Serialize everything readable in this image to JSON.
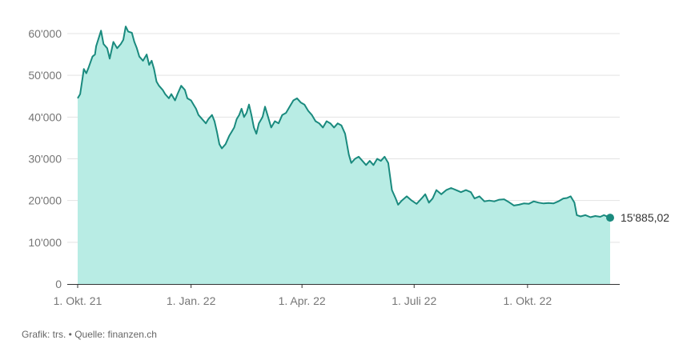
{
  "chart_data": {
    "type": "area",
    "title": "",
    "xlabel": "",
    "ylabel": "",
    "ylim": [
      0,
      60000
    ],
    "y_ticks": [
      0,
      10000,
      20000,
      30000,
      40000,
      50000,
      60000
    ],
    "y_tick_labels": [
      "0",
      "10'000",
      "20'000",
      "30'000",
      "40'000",
      "50'000",
      "60'000"
    ],
    "x_range": [
      "2021-10-01",
      "2022-12-07"
    ],
    "x_ticks": [
      "2021-10-01",
      "2022-01-01",
      "2022-04-01",
      "2022-07-01",
      "2022-10-01"
    ],
    "x_tick_labels": [
      "1. Okt. 21",
      "1. Jan. 22",
      "1. Apr. 22",
      "1. Juli 22",
      "1. Okt. 22"
    ],
    "grid": true,
    "colors": {
      "line": "#1a8a7e",
      "fill": "#b8ece4",
      "grid": "#e3e3e3",
      "axis": "#333333"
    },
    "last_value_label": "15'885,02",
    "series": [
      {
        "name": "",
        "points": [
          [
            "2021-10-01",
            44500
          ],
          [
            "2021-10-03",
            45500
          ],
          [
            "2021-10-05",
            49500
          ],
          [
            "2021-10-06",
            51500
          ],
          [
            "2021-10-08",
            50500
          ],
          [
            "2021-10-10",
            52000
          ],
          [
            "2021-10-13",
            54500
          ],
          [
            "2021-10-15",
            55000
          ],
          [
            "2021-10-16",
            57000
          ],
          [
            "2021-10-20",
            60700
          ],
          [
            "2021-10-22",
            57500
          ],
          [
            "2021-10-25",
            56500
          ],
          [
            "2021-10-27",
            54000
          ],
          [
            "2021-10-30",
            58000
          ],
          [
            "2021-11-02",
            56500
          ],
          [
            "2021-11-05",
            57500
          ],
          [
            "2021-11-07",
            58500
          ],
          [
            "2021-11-09",
            61700
          ],
          [
            "2021-11-11",
            60500
          ],
          [
            "2021-11-14",
            60200
          ],
          [
            "2021-11-16",
            58000
          ],
          [
            "2021-11-18",
            56500
          ],
          [
            "2021-11-20",
            54500
          ],
          [
            "2021-11-23",
            53500
          ],
          [
            "2021-11-26",
            55000
          ],
          [
            "2021-11-28",
            52500
          ],
          [
            "2021-11-30",
            53500
          ],
          [
            "2021-12-02",
            51500
          ],
          [
            "2021-12-04",
            48500
          ],
          [
            "2021-12-06",
            47500
          ],
          [
            "2021-12-09",
            46500
          ],
          [
            "2021-12-11",
            45500
          ],
          [
            "2021-12-14",
            44500
          ],
          [
            "2021-12-16",
            45500
          ],
          [
            "2021-12-19",
            44000
          ],
          [
            "2021-12-21",
            45500
          ],
          [
            "2021-12-24",
            47500
          ],
          [
            "2021-12-27",
            46500
          ],
          [
            "2021-12-29",
            44500
          ],
          [
            "2022-01-01",
            44000
          ],
          [
            "2022-01-03",
            43000
          ],
          [
            "2022-01-05",
            42000
          ],
          [
            "2022-01-07",
            40500
          ],
          [
            "2022-01-10",
            39500
          ],
          [
            "2022-01-13",
            38500
          ],
          [
            "2022-01-15",
            39500
          ],
          [
            "2022-01-18",
            40500
          ],
          [
            "2022-01-20",
            39000
          ],
          [
            "2022-01-22",
            36500
          ],
          [
            "2022-01-24",
            33500
          ],
          [
            "2022-01-26",
            32500
          ],
          [
            "2022-01-29",
            33500
          ],
          [
            "2022-02-01",
            35500
          ],
          [
            "2022-02-03",
            36500
          ],
          [
            "2022-02-05",
            37500
          ],
          [
            "2022-02-07",
            39500
          ],
          [
            "2022-02-09",
            40500
          ],
          [
            "2022-02-11",
            42000
          ],
          [
            "2022-02-13",
            40000
          ],
          [
            "2022-02-15",
            41000
          ],
          [
            "2022-02-17",
            43000
          ],
          [
            "2022-02-19",
            40500
          ],
          [
            "2022-02-21",
            37500
          ],
          [
            "2022-02-23",
            36000
          ],
          [
            "2022-02-25",
            38500
          ],
          [
            "2022-02-28",
            40000
          ],
          [
            "2022-03-02",
            42500
          ],
          [
            "2022-03-04",
            40500
          ],
          [
            "2022-03-07",
            37500
          ],
          [
            "2022-03-10",
            39000
          ],
          [
            "2022-03-13",
            38500
          ],
          [
            "2022-03-16",
            40500
          ],
          [
            "2022-03-19",
            41000
          ],
          [
            "2022-03-22",
            42500
          ],
          [
            "2022-03-25",
            44000
          ],
          [
            "2022-03-28",
            44500
          ],
          [
            "2022-03-31",
            43500
          ],
          [
            "2022-04-03",
            43000
          ],
          [
            "2022-04-06",
            41500
          ],
          [
            "2022-04-09",
            40500
          ],
          [
            "2022-04-12",
            39000
          ],
          [
            "2022-04-15",
            38500
          ],
          [
            "2022-04-18",
            37500
          ],
          [
            "2022-04-21",
            39000
          ],
          [
            "2022-04-24",
            38500
          ],
          [
            "2022-04-27",
            37500
          ],
          [
            "2022-04-30",
            38500
          ],
          [
            "2022-05-03",
            38000
          ],
          [
            "2022-05-06",
            36000
          ],
          [
            "2022-05-09",
            31000
          ],
          [
            "2022-05-11",
            29000
          ],
          [
            "2022-05-14",
            30000
          ],
          [
            "2022-05-17",
            30500
          ],
          [
            "2022-05-20",
            29500
          ],
          [
            "2022-05-23",
            28500
          ],
          [
            "2022-05-26",
            29500
          ],
          [
            "2022-05-29",
            28500
          ],
          [
            "2022-06-01",
            30000
          ],
          [
            "2022-06-04",
            29500
          ],
          [
            "2022-06-07",
            30500
          ],
          [
            "2022-06-10",
            29000
          ],
          [
            "2022-06-13",
            22500
          ],
          [
            "2022-06-16",
            20500
          ],
          [
            "2022-06-18",
            19000
          ],
          [
            "2022-06-21",
            20000
          ],
          [
            "2022-06-25",
            21000
          ],
          [
            "2022-06-29",
            20000
          ],
          [
            "2022-07-03",
            19200
          ],
          [
            "2022-07-07",
            20500
          ],
          [
            "2022-07-10",
            21500
          ],
          [
            "2022-07-13",
            19500
          ],
          [
            "2022-07-16",
            20500
          ],
          [
            "2022-07-19",
            22500
          ],
          [
            "2022-07-23",
            21500
          ],
          [
            "2022-07-27",
            22500
          ],
          [
            "2022-07-31",
            23000
          ],
          [
            "2022-08-04",
            22500
          ],
          [
            "2022-08-08",
            22000
          ],
          [
            "2022-08-12",
            22500
          ],
          [
            "2022-08-16",
            22000
          ],
          [
            "2022-08-19",
            20500
          ],
          [
            "2022-08-23",
            21000
          ],
          [
            "2022-08-27",
            19800
          ],
          [
            "2022-08-31",
            20000
          ],
          [
            "2022-09-04",
            19800
          ],
          [
            "2022-09-08",
            20200
          ],
          [
            "2022-09-12",
            20300
          ],
          [
            "2022-09-16",
            19600
          ],
          [
            "2022-09-20",
            18800
          ],
          [
            "2022-09-24",
            19000
          ],
          [
            "2022-09-28",
            19300
          ],
          [
            "2022-10-02",
            19200
          ],
          [
            "2022-10-06",
            19800
          ],
          [
            "2022-10-10",
            19500
          ],
          [
            "2022-10-14",
            19300
          ],
          [
            "2022-10-18",
            19400
          ],
          [
            "2022-10-22",
            19300
          ],
          [
            "2022-10-26",
            19800
          ],
          [
            "2022-10-30",
            20500
          ],
          [
            "2022-11-02",
            20600
          ],
          [
            "2022-11-05",
            21000
          ],
          [
            "2022-11-08",
            19500
          ],
          [
            "2022-11-10",
            16500
          ],
          [
            "2022-11-13",
            16200
          ],
          [
            "2022-11-17",
            16500
          ],
          [
            "2022-11-21",
            16000
          ],
          [
            "2022-11-25",
            16300
          ],
          [
            "2022-11-29",
            16100
          ],
          [
            "2022-12-02",
            16500
          ],
          [
            "2022-12-07",
            15885.02
          ]
        ]
      }
    ]
  },
  "caption": "Grafik: trs. • Quelle: finanzen.ch"
}
